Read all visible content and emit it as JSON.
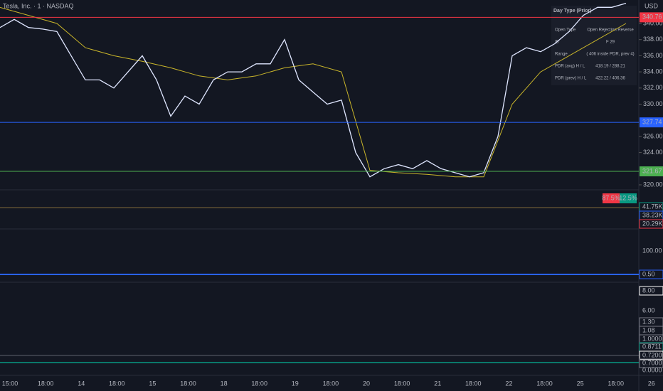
{
  "header": {
    "title": "Tesla, Inc. · 1 · NASDAQ",
    "currency": "USD"
  },
  "price_axis": {
    "ylim": [
      320,
      342
    ],
    "yticks": [
      {
        "value": 340,
        "label": "340.00"
      },
      {
        "value": 338,
        "label": "338.00"
      },
      {
        "value": 336,
        "label": "336.00"
      },
      {
        "value": 334,
        "label": "334.00"
      },
      {
        "value": 332,
        "label": "332.00"
      },
      {
        "value": 330,
        "label": "330.00"
      },
      {
        "value": 326,
        "label": "326.00"
      },
      {
        "value": 324,
        "label": "324.00"
      },
      {
        "value": 320,
        "label": "320.00"
      }
    ]
  },
  "levels": [
    {
      "value": 340.76,
      "color": "#f23645"
    },
    {
      "value": 327.74,
      "color": "#2962ff"
    },
    {
      "value": 321.67,
      "color": "#4caf50"
    }
  ],
  "price": {
    "color": "#dfe6ff",
    "values": [
      339.5,
      340.5,
      339.5,
      339.3,
      339,
      336,
      333,
      333,
      332,
      334,
      336,
      333,
      328.5,
      331,
      330,
      333,
      334,
      334,
      335,
      335,
      338,
      333,
      331.5,
      330,
      330.5,
      324,
      321,
      322,
      322.5,
      322,
      323,
      322,
      321.5,
      321,
      321.5,
      326,
      336,
      337,
      336.5,
      337.5,
      339,
      341,
      342,
      342,
      342.5
    ]
  },
  "vwap": {
    "color": "#c9b52a",
    "values": [
      342,
      341,
      340,
      337,
      336,
      335.3,
      334.5,
      333.5,
      333,
      333.5,
      334.5,
      335,
      334,
      321.8,
      321.5,
      321.3,
      321,
      321,
      330,
      334,
      336,
      338,
      340
    ]
  },
  "time_axis": [
    "15:00",
    "18:00",
    "14",
    "18:00",
    "15",
    "18:00",
    "18",
    "18:00",
    "19",
    "18:00",
    "20",
    "18:00",
    "21",
    "18:00",
    "22",
    "18:00",
    "25",
    "18:00",
    "26"
  ],
  "pane_labels": [
    {
      "text": "41.75K",
      "color": "#089981"
    },
    {
      "text": "38.23K",
      "color": "#2962ff"
    },
    {
      "text": "20.29K",
      "color": "#f23645"
    },
    {
      "text": "100.00",
      "color": ""
    },
    {
      "text": "0.50",
      "color": "#2962ff"
    },
    {
      "text": "8.00",
      "color": "#ffffff"
    },
    {
      "text": "6.00",
      "color": ""
    },
    {
      "text": "1.30",
      "color": "#787b86"
    },
    {
      "text": "1.08",
      "color": "#787b86"
    },
    {
      "text": "1.0000",
      "color": "#787b86"
    },
    {
      "text": "0.8711",
      "color": "#089981"
    },
    {
      "text": "0.7200",
      "color": "#ffffff"
    },
    {
      "text": "0.7000",
      "color": "#787b86"
    },
    {
      "text": "0.0000",
      "color": ""
    }
  ],
  "ratio": {
    "sell": "87.5%",
    "buy": "12.5%"
  },
  "table": {
    "title": "Day Type (Prior)",
    "rows": [
      [
        "Open Type",
        "Open Rejection Reverse"
      ],
      [
        "IB",
        "F 29"
      ],
      [
        "Range",
        "( 406 inside PDR, prev 4)"
      ],
      [
        "PDR (avg) H / L",
        "418.19 / 288.21"
      ],
      [
        "PDR (prev) H / L",
        "422.22 / 406.36"
      ]
    ]
  }
}
